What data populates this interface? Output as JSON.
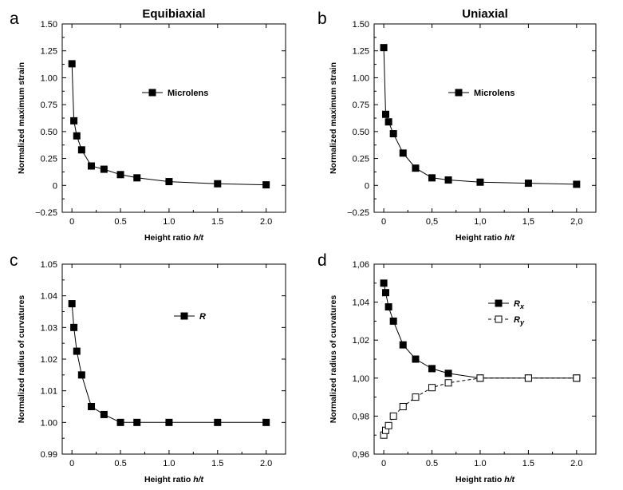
{
  "chart_data": [
    {
      "id": "a",
      "type": "line",
      "panel_letter": "a",
      "title": "Equibiaxial",
      "xlabel": "Height ratio ",
      "xlabel_italic": "h/t",
      "ylabel": "Normalized maximum strain",
      "xlim": [
        -0.1,
        2.2
      ],
      "ylim": [
        -0.25,
        1.5
      ],
      "xticks": [
        0,
        0.5,
        1.0,
        1.5,
        2.0
      ],
      "xtick_labels": [
        "0",
        "0.5",
        "1.0",
        "1.5",
        "2.0"
      ],
      "yticks": [
        -0.25,
        0,
        0.25,
        0.5,
        0.75,
        1.0,
        1.25,
        1.5
      ],
      "ytick_labels": [
        "−0.25",
        "0",
        "0.25",
        "0.50",
        "0.75",
        "1.00",
        "1.25",
        "1.50"
      ],
      "legend_position": "center-right",
      "series": [
        {
          "name": "Microlens",
          "name_sub": "",
          "marker": "square-filled",
          "dashed": false,
          "x": [
            0,
            0.02,
            0.05,
            0.1,
            0.2,
            0.33,
            0.5,
            0.67,
            1.0,
            1.5,
            2.0
          ],
          "y": [
            1.13,
            0.6,
            0.46,
            0.33,
            0.18,
            0.15,
            0.1,
            0.07,
            0.035,
            0.015,
            0.005
          ]
        }
      ]
    },
    {
      "id": "b",
      "type": "line",
      "panel_letter": "b",
      "title": "Uniaxial",
      "xlabel": "Height ratio ",
      "xlabel_italic": "h/t",
      "ylabel": "Normalized maximum strain",
      "xlim": [
        -0.1,
        2.2
      ],
      "ylim": [
        -0.25,
        1.5
      ],
      "xticks": [
        0,
        0.5,
        1.0,
        1.5,
        2.0
      ],
      "xtick_labels": [
        "0",
        "0,5",
        "1,0",
        "1,5",
        "2,0"
      ],
      "yticks": [
        -0.25,
        0,
        0.25,
        0.5,
        0.75,
        1.0,
        1.25,
        1.5
      ],
      "ytick_labels": [
        "−0.25",
        "0",
        "0.25",
        "0.50",
        "0.75",
        "1.00",
        "1.25",
        "1.50"
      ],
      "legend_position": "center-right",
      "series": [
        {
          "name": "Microlens",
          "name_sub": "",
          "marker": "square-filled",
          "dashed": false,
          "x": [
            0,
            0.02,
            0.05,
            0.1,
            0.2,
            0.33,
            0.5,
            0.67,
            1.0,
            1.5,
            2.0
          ],
          "y": [
            1.28,
            0.66,
            0.59,
            0.48,
            0.3,
            0.16,
            0.07,
            0.05,
            0.03,
            0.02,
            0.01
          ]
        }
      ]
    },
    {
      "id": "c",
      "type": "line",
      "panel_letter": "c",
      "title": "",
      "xlabel": "Height ratio ",
      "xlabel_italic": "h/t",
      "ylabel": "Normalized radius of curvatures",
      "xlim": [
        -0.1,
        2.2
      ],
      "ylim": [
        0.99,
        1.05
      ],
      "xticks": [
        0,
        0.5,
        1.0,
        1.5,
        2.0
      ],
      "xtick_labels": [
        "0",
        "0.5",
        "1.0",
        "1.5",
        "2.0"
      ],
      "yticks": [
        0.99,
        1.0,
        1.01,
        1.02,
        1.03,
        1.04,
        1.05
      ],
      "ytick_labels": [
        "0.99",
        "1.00",
        "1.01",
        "1.02",
        "1.03",
        "1.04",
        "1.05"
      ],
      "legend_position": "center-right",
      "series": [
        {
          "name": "R",
          "name_sub": "",
          "marker": "square-filled",
          "dashed": false,
          "x": [
            0,
            0.02,
            0.05,
            0.1,
            0.2,
            0.33,
            0.5,
            0.67,
            1.0,
            1.5,
            2.0
          ],
          "y": [
            1.0375,
            1.03,
            1.0225,
            1.015,
            1.005,
            1.0025,
            1.0,
            1.0,
            1.0,
            1.0,
            1.0
          ]
        }
      ]
    },
    {
      "id": "d",
      "type": "line",
      "panel_letter": "d",
      "title": "",
      "xlabel": "Height ratio ",
      "xlabel_italic": "h/t",
      "ylabel": "Normalized radius of curvatures",
      "xlim": [
        -0.1,
        2.2
      ],
      "ylim": [
        0.96,
        1.06
      ],
      "xticks": [
        0,
        0.5,
        1.0,
        1.5,
        2.0
      ],
      "xtick_labels": [
        "0",
        "0.5",
        "1.0",
        "1.5",
        "2.0"
      ],
      "yticks": [
        0.96,
        0.98,
        1.0,
        1.02,
        1.04,
        1.06
      ],
      "ytick_labels": [
        "0,96",
        "0,98",
        "1,00",
        "1,02",
        "1,04",
        "1,06"
      ],
      "legend_position": "top-right",
      "series": [
        {
          "name": "R",
          "name_sub": "x",
          "marker": "square-filled",
          "dashed": false,
          "x": [
            0,
            0.02,
            0.05,
            0.1,
            0.2,
            0.33,
            0.5,
            0.67,
            1.0,
            1.5,
            2.0
          ],
          "y": [
            1.05,
            1.045,
            1.0375,
            1.03,
            1.0175,
            1.01,
            1.005,
            1.0025,
            1.0,
            1.0,
            1.0
          ]
        },
        {
          "name": "R",
          "name_sub": "y",
          "marker": "square-open",
          "dashed": true,
          "x": [
            0,
            0.02,
            0.05,
            0.1,
            0.2,
            0.33,
            0.5,
            0.67,
            1.0,
            1.5,
            2.0
          ],
          "y": [
            0.97,
            0.9725,
            0.975,
            0.98,
            0.985,
            0.99,
            0.995,
            0.9975,
            1.0,
            1.0,
            1.0
          ]
        }
      ]
    }
  ]
}
